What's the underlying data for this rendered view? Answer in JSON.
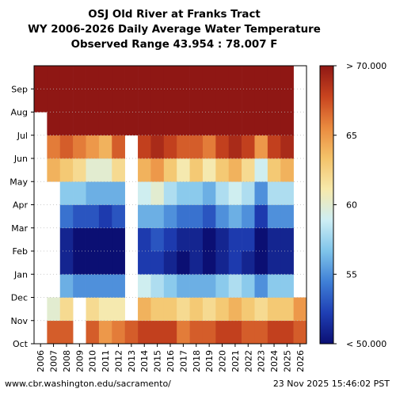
{
  "title": {
    "line1": "OSJ Old River at Franks Tract",
    "line2": "WY 2006-2026 Daily Average Water Temperature",
    "line3": "Observed Range 43.954 : 78.007 F"
  },
  "footer": {
    "left": "www.cbr.washington.edu/sacramento/",
    "right": "23 Nov 2025 15:46:02 PST"
  },
  "chart_data": {
    "type": "heatmap",
    "x_categories": [
      "2006",
      "2007",
      "2008",
      "2009",
      "2010",
      "2011",
      "2012",
      "2013",
      "2014",
      "2015",
      "2016",
      "2017",
      "2018",
      "2019",
      "2020",
      "2021",
      "2022",
      "2023",
      "2024",
      "2025",
      "2026"
    ],
    "y_months": [
      "Oct",
      "Nov",
      "Dec",
      "Jan",
      "Feb",
      "Mar",
      "Apr",
      "May",
      "Jun",
      "Jul",
      "Aug",
      "Sep"
    ],
    "colorbar": {
      "min": 50,
      "max": 70,
      "ticks": [
        {
          "value": 50,
          "label": "< 50.000"
        },
        {
          "value": 55,
          "label": "55"
        },
        {
          "value": 60,
          "label": "60"
        },
        {
          "value": 65,
          "label": "65"
        },
        {
          "value": 70,
          "label": "> 70.000"
        }
      ],
      "colors": [
        "#0b0f73",
        "#1f3fb4",
        "#3f7fd6",
        "#7fc4ea",
        "#cdeef4",
        "#f7e9ab",
        "#f4c36a",
        "#ea8a3f",
        "#c8441f",
        "#8f1714"
      ]
    },
    "approx_monthly_temperature_F": {
      "2006": [
        null,
        null,
        null,
        null,
        null,
        null,
        null,
        null,
        null,
        null,
        74,
        73
      ],
      "2007": [
        67,
        60,
        null,
        null,
        null,
        null,
        null,
        64,
        66,
        72,
        75,
        73
      ],
      "2008": [
        67,
        62,
        56,
        51,
        51,
        54,
        57,
        63,
        67,
        73,
        75,
        72
      ],
      "2009": [
        null,
        null,
        55,
        50,
        50,
        53,
        57,
        62,
        66,
        73,
        75,
        73
      ],
      "2010": [
        67,
        62,
        55,
        50,
        50,
        53,
        56,
        60,
        65,
        72,
        74,
        72
      ],
      "2011": [
        65,
        61,
        55,
        50,
        50,
        52,
        56,
        60,
        64,
        71,
        74,
        72
      ],
      "2012": [
        66,
        61,
        55,
        50,
        50,
        53,
        56,
        62,
        67,
        73,
        75,
        73
      ],
      "2013": [
        67,
        null,
        null,
        null,
        null,
        null,
        null,
        null,
        null,
        74,
        75,
        73
      ],
      "2014": [
        68,
        64,
        59,
        52,
        52,
        56,
        59,
        64,
        68,
        74,
        76,
        74
      ],
      "2015": [
        68,
        63,
        58,
        52,
        53,
        56,
        60,
        65,
        69,
        74,
        76,
        74
      ],
      "2016": [
        68,
        63,
        57,
        51,
        52,
        55,
        58,
        63,
        68,
        74,
        76,
        73
      ],
      "2017": [
        66,
        62,
        56,
        50,
        51,
        54,
        57,
        61,
        67,
        73,
        75,
        73
      ],
      "2018": [
        67,
        63,
        56,
        51,
        51,
        54,
        57,
        63,
        67,
        74,
        76,
        73
      ],
      "2019": [
        67,
        62,
        56,
        50,
        50,
        53,
        56,
        61,
        66,
        73,
        75,
        73
      ],
      "2020": [
        68,
        63,
        57,
        51,
        51,
        55,
        58,
        63,
        68,
        74,
        76,
        74
      ],
      "2021": [
        68,
        64,
        58,
        52,
        52,
        56,
        59,
        64,
        69,
        74,
        76,
        74
      ],
      "2022": [
        67,
        63,
        57,
        51,
        52,
        55,
        58,
        62,
        68,
        74,
        76,
        73
      ],
      "2023": [
        67,
        62,
        55,
        50,
        50,
        52,
        55,
        59,
        65,
        73,
        76,
        73
      ],
      "2024": [
        68,
        63,
        57,
        51,
        51,
        55,
        58,
        63,
        68,
        74,
        76,
        74
      ],
      "2025": [
        68,
        63,
        57,
        51,
        51,
        55,
        58,
        64,
        69,
        74,
        76,
        74
      ],
      "2026": [
        67,
        65,
        null,
        null,
        null,
        null,
        null,
        null,
        null,
        null,
        null,
        null
      ]
    }
  }
}
